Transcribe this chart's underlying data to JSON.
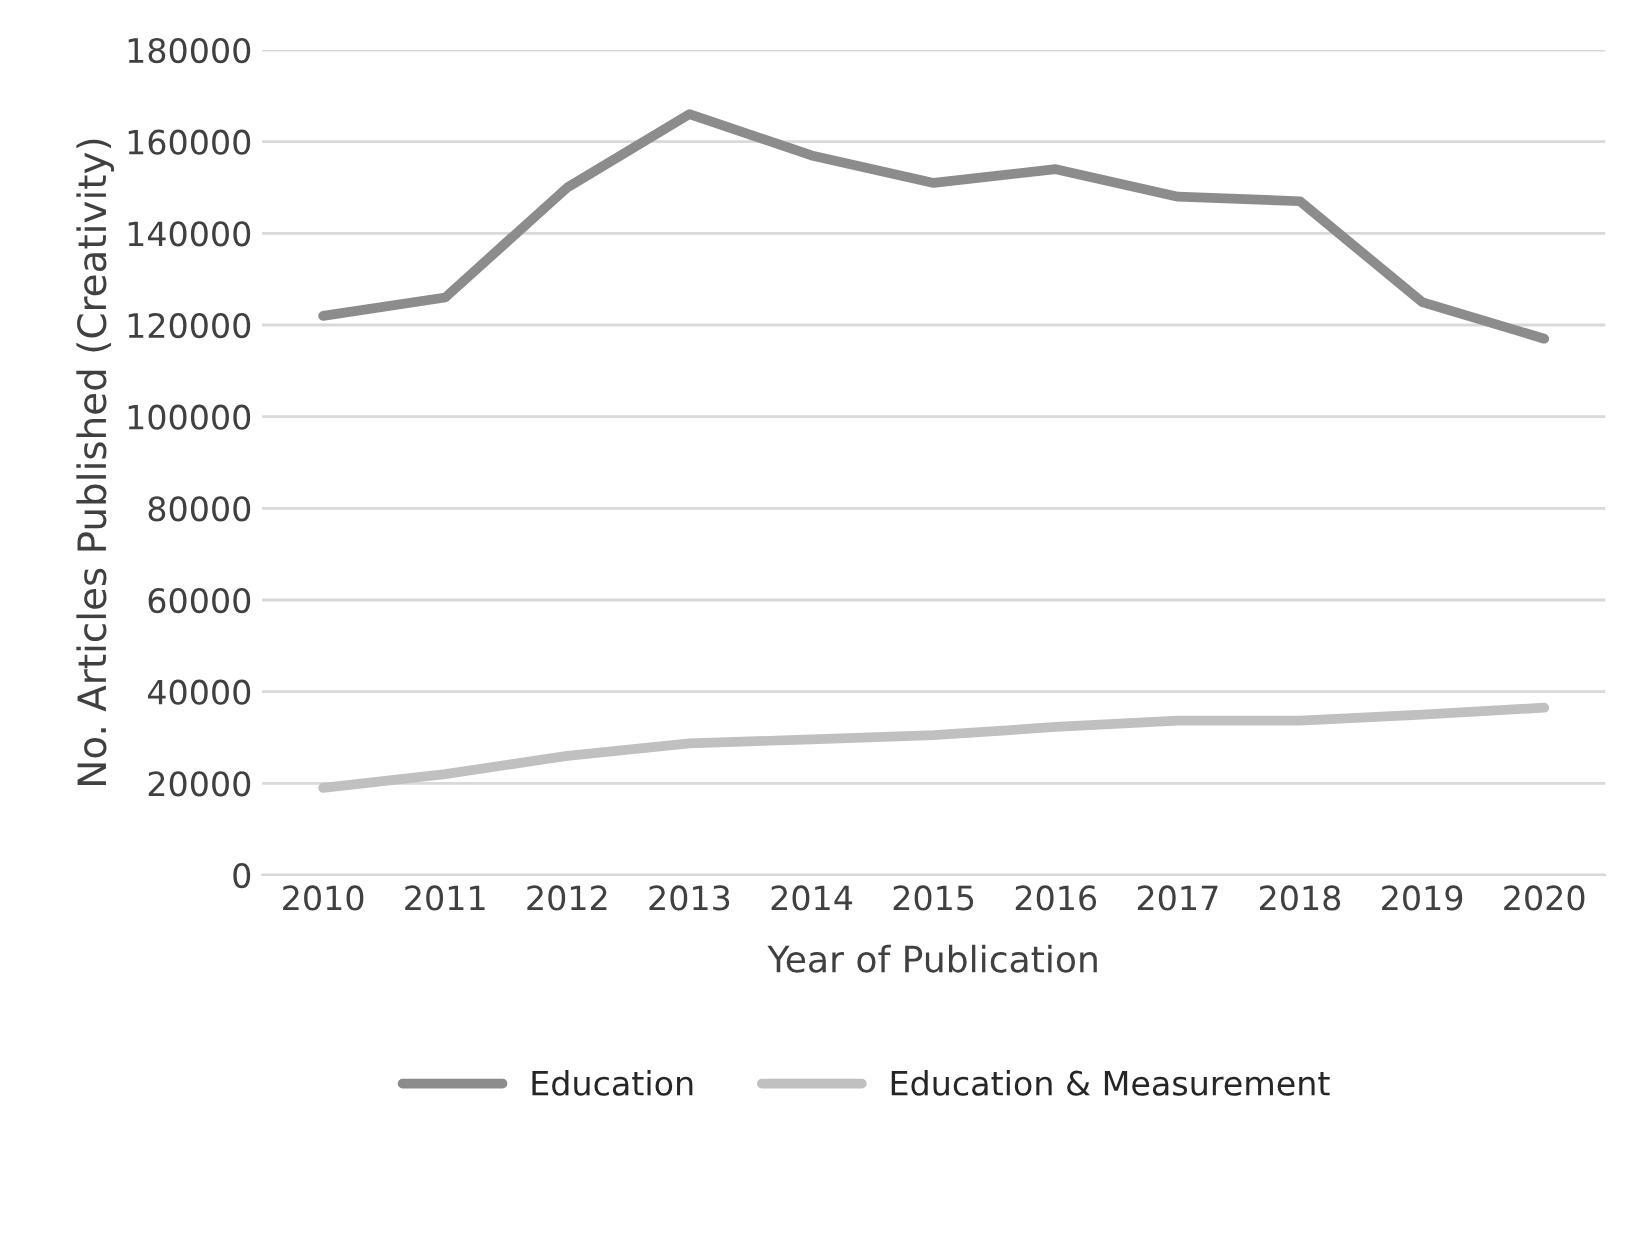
{
  "chart_data": {
    "type": "line",
    "xlabel": "Year of Publication",
    "ylabel": "No. Articles Published (Creativity)",
    "categories": [
      "2010",
      "2011",
      "2012",
      "2013",
      "2014",
      "2015",
      "2016",
      "2017",
      "2018",
      "2019",
      "2020"
    ],
    "series": [
      {
        "name": "Education",
        "color": "#8c8c8c",
        "values": [
          122000,
          126000,
          150000,
          166000,
          157000,
          151000,
          154000,
          148000,
          147000,
          125000,
          117000
        ]
      },
      {
        "name": "Education & Measurement",
        "color": "#c0c0c0",
        "values": [
          19000,
          22000,
          26000,
          28700,
          29600,
          30500,
          32300,
          33700,
          33700,
          35000,
          36500
        ]
      }
    ],
    "ylim": [
      0,
      180000
    ],
    "yticks": [
      0,
      20000,
      40000,
      60000,
      80000,
      100000,
      120000,
      140000,
      160000,
      180000
    ],
    "grid": "y",
    "legend": "bottom",
    "marker": "none",
    "line_style": "solid"
  }
}
